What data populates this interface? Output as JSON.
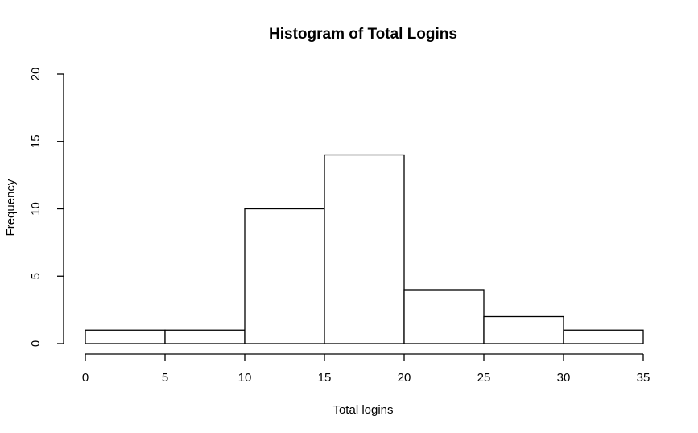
{
  "chart_data": {
    "type": "bar",
    "title": "Histogram of Total Logins",
    "xlabel": "Total logins",
    "ylabel": "Frequency",
    "bins": [
      {
        "start": 0,
        "end": 5,
        "count": 1
      },
      {
        "start": 5,
        "end": 10,
        "count": 1
      },
      {
        "start": 10,
        "end": 15,
        "count": 10
      },
      {
        "start": 15,
        "end": 20,
        "count": 14
      },
      {
        "start": 20,
        "end": 25,
        "count": 4
      },
      {
        "start": 25,
        "end": 30,
        "count": 2
      },
      {
        "start": 30,
        "end": 35,
        "count": 1
      }
    ],
    "xlim": [
      0,
      35
    ],
    "ylim": [
      0,
      20
    ],
    "xticks": [
      "0",
      "5",
      "10",
      "15",
      "20",
      "25",
      "30",
      "35"
    ],
    "yticks": [
      "0",
      "5",
      "10",
      "15",
      "20"
    ],
    "grid": false,
    "bar_fill": "#ffffff",
    "bar_stroke": "#000000"
  }
}
